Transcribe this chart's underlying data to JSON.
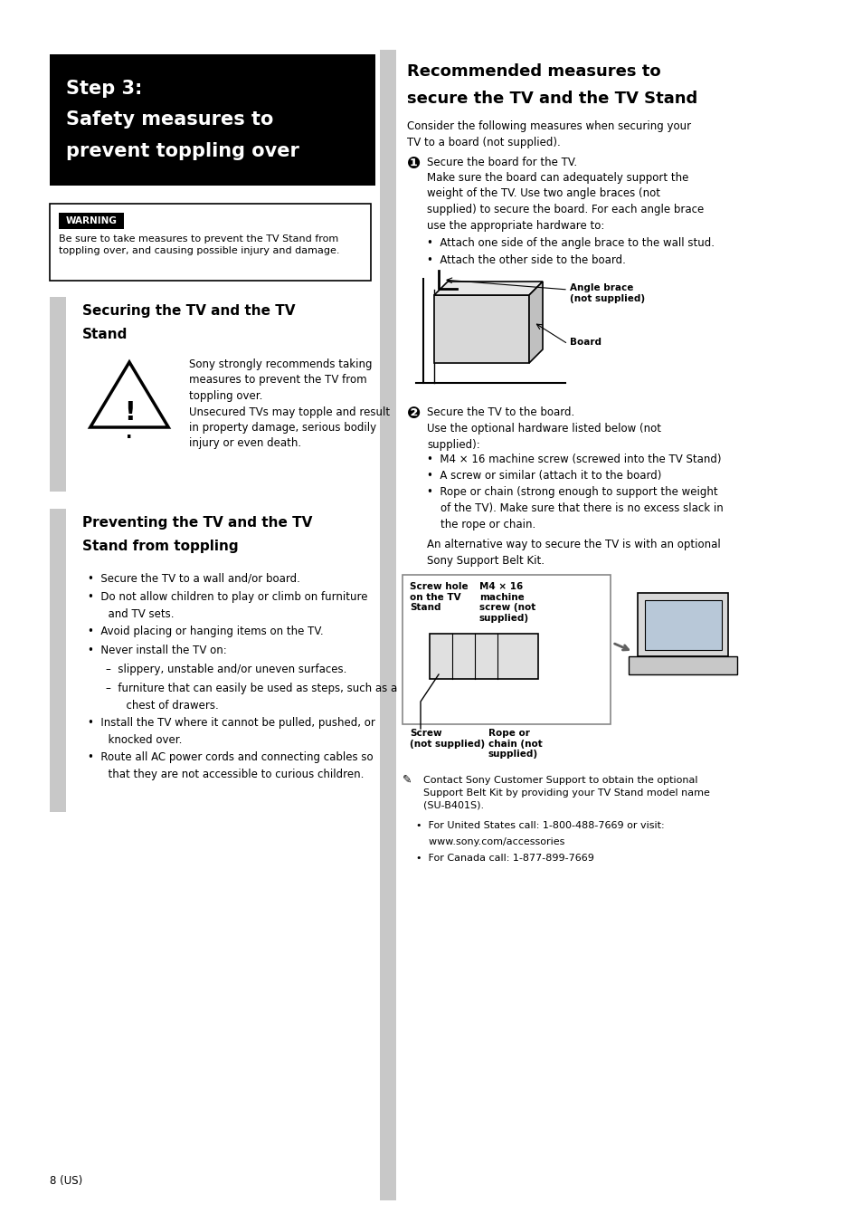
{
  "bg_color": "#ffffff",
  "text_color": "#000000",
  "gray_bar_color": "#c8c8c8",
  "divider_color": "#b0b0b0",
  "header_box_color": "#000000",
  "header_text_line1": "Step 3:",
  "header_text_line2": "Safety measures to",
  "header_text_line3": "prevent toppling over",
  "right_header_line1": "Recommended measures to",
  "right_header_line2": "secure the TV and the TV Stand",
  "warning_label_text": "WARNING",
  "warning_body": "Be sure to take measures to prevent the TV Stand from\ntoppling over, and causing possible injury and damage.",
  "section1_title_line1": "Securing the TV and the TV",
  "section1_title_line2": "Stand",
  "section1_caution_text": "Sony strongly recommends taking\nmeasures to prevent the TV from\ntoppling over.\nUnsecured TVs may topple and result\nin property damage, serious bodily\ninjury or even death.",
  "section2_title_line1": "Preventing the TV and the TV",
  "section2_title_line2": "Stand from toppling",
  "section2_bullets": [
    {
      "text": "Secure the TV to a wall and/or board.",
      "sub": false,
      "indent": 0
    },
    {
      "text": "Do not allow children to play or climb on furniture\nand TV sets.",
      "sub": false,
      "indent": 0
    },
    {
      "text": "Avoid placing or hanging items on the TV.",
      "sub": false,
      "indent": 0
    },
    {
      "text": "Never install the TV on:",
      "sub": false,
      "indent": 0
    },
    {
      "text": "–  slippery, unstable and/or uneven surfaces.",
      "sub": true,
      "indent": 0.015
    },
    {
      "text": "–  furniture that can easily be used as steps, such as a\n   chest of drawers.",
      "sub": true,
      "indent": 0.015
    },
    {
      "text": "Install the TV where it cannot be pulled, pushed, or\nknocked over.",
      "sub": false,
      "indent": 0
    },
    {
      "text": "Route all AC power cords and connecting cables so\nthat they are not accessible to curious children.",
      "sub": false,
      "indent": 0
    }
  ],
  "right_intro": "Consider the following measures when securing your\nTV to a board (not supplied).",
  "step1_body": "Make sure the board can adequately support the\nweight of the TV. Use two angle braces (not\nsupplied) to secure the board. For each angle brace\nuse the appropriate hardware to:",
  "step1_bullets": [
    "Attach one side of the angle brace to the wall stud.",
    "Attach the other side to the board."
  ],
  "angle_brace_label": "Angle brace\n(not supplied)",
  "board_label": "Board",
  "step2_body": "Use the optional hardware listed below (not\nsupplied):",
  "step2_bullets": [
    "M4 × 16 machine screw (screwed into the TV Stand)",
    "A screw or similar (attach it to the board)",
    "Rope or chain (strong enough to support the weight\nof the TV). Make sure that there is no excess slack in\nthe rope or chain."
  ],
  "step2_extra": "An alternative way to secure the TV is with an optional\nSony Support Belt Kit.",
  "screw_hole_label": "Screw hole\non the TV\nStand",
  "m4_label": "M4 × 16\nmachine\nscrew (not\nsupplied)",
  "screw_label": "Screw\n(not supplied)",
  "rope_label": "Rope or\nchain (not\nsupplied)",
  "note_text": "Contact Sony Customer Support to obtain the optional\nSupport Belt Kit by providing your TV Stand model name\n(SU-B401S).",
  "note_bullets": [
    "For United States call: 1-800-488-7669 or visit:\nwww.sony.com/accessories",
    "For Canada call: 1-877-899-7669"
  ],
  "page_num": "8 (US)"
}
